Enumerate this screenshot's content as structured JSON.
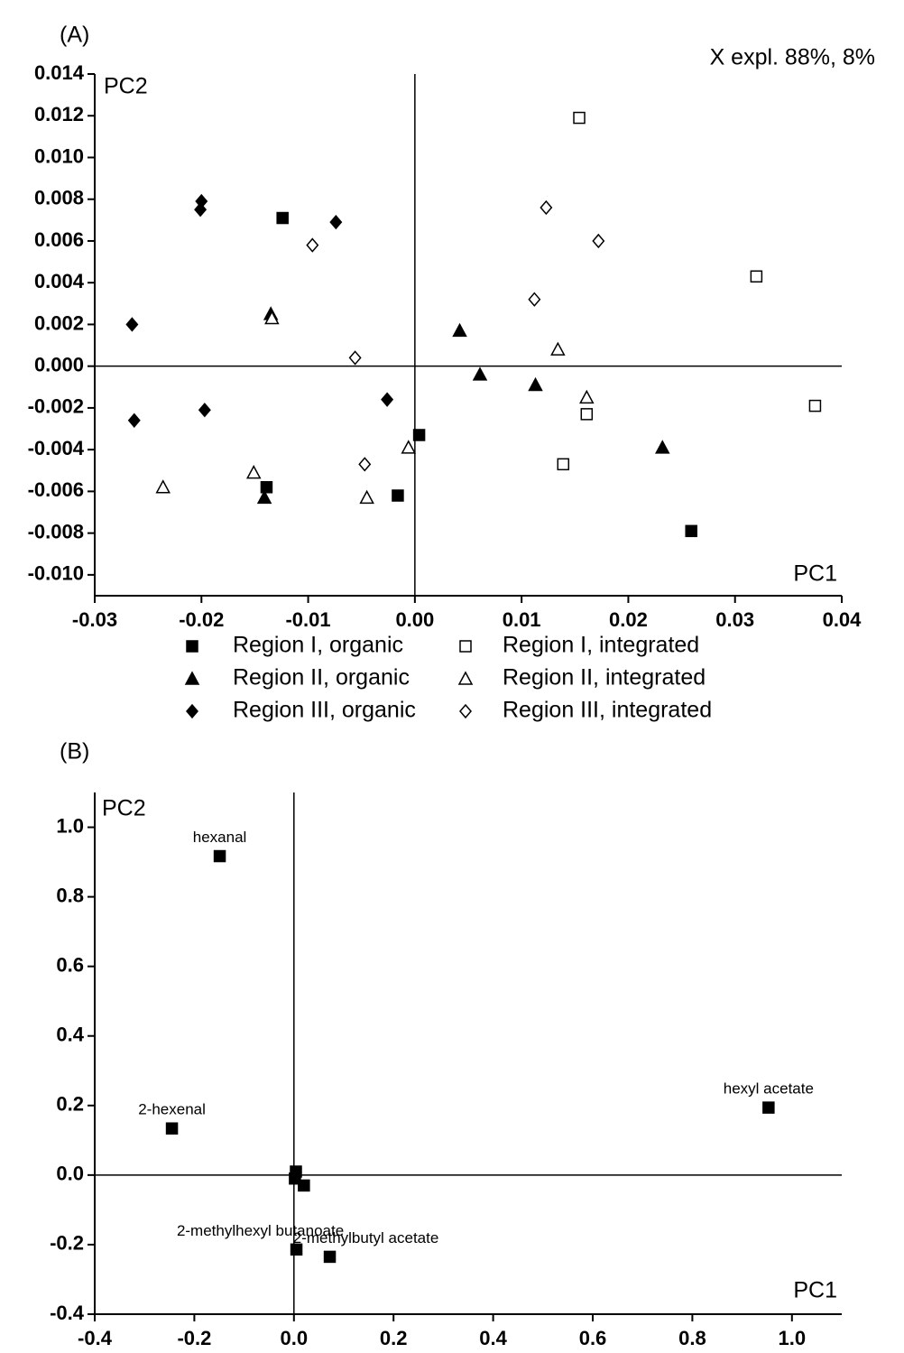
{
  "chart_data": [
    {
      "type": "scatter",
      "panel_label": "(A)",
      "annotation": "X expl. 88%, 8%",
      "ylabel": "PC2",
      "xlabel": "PC1",
      "xlim": [
        -0.03,
        0.04
      ],
      "ylim": [
        -0.011,
        0.014
      ],
      "xticks": [
        -0.03,
        -0.02,
        -0.01,
        {
          "value": 0,
          "label": "0.00"
        },
        0.01,
        0.02,
        0.03,
        0.04
      ],
      "yticks": [
        {
          "value": -0.01,
          "label": "-0.010"
        },
        -0.008,
        -0.006,
        -0.004,
        -0.002,
        {
          "value": 0,
          "label": "0.000"
        },
        0.002,
        0.004,
        0.006,
        0.008,
        {
          "value": 0.01,
          "label": "0.010"
        },
        0.012,
        0.014
      ],
      "legend": "below",
      "grid": false,
      "series": [
        {
          "name": "Region I, organic",
          "color": "#000000",
          "marker": "square",
          "filled": true,
          "x": [
            -0.0124,
            -0.0139,
            -0.0016,
            0.0004,
            0.0259
          ],
          "y": [
            0.0071,
            -0.0058,
            -0.0062,
            -0.0033,
            -0.0079
          ]
        },
        {
          "name": "Region I, integrated",
          "color": "#000000",
          "marker": "square",
          "filled": false,
          "x": [
            0.0154,
            0.032,
            0.0375,
            0.0161,
            0.0139
          ],
          "y": [
            0.0119,
            0.0043,
            -0.0019,
            -0.0023,
            -0.0047
          ]
        },
        {
          "name": "Region II, organic",
          "color": "#000000",
          "marker": "triangle",
          "filled": true,
          "x": [
            -0.0135,
            0.0042,
            0.0061,
            0.0113,
            0.0232,
            -0.0141
          ],
          "y": [
            0.0025,
            0.0017,
            -0.0004,
            -0.0009,
            -0.0039,
            -0.0063
          ]
        },
        {
          "name": "Region II, integrated",
          "color": "#000000",
          "marker": "triangle",
          "filled": false,
          "x": [
            -0.0134,
            0.0134,
            0.0161,
            -0.0006,
            -0.0151,
            -0.0045,
            -0.0236
          ],
          "y": [
            0.0023,
            0.0008,
            -0.0015,
            -0.0039,
            -0.0051,
            -0.0063,
            -0.0058
          ]
        },
        {
          "name": "Region III, organic",
          "color": "#000000",
          "marker": "diamond",
          "filled": true,
          "x": [
            -0.02,
            -0.0201,
            -0.0074,
            -0.0265,
            -0.0026,
            -0.0197,
            -0.0263
          ],
          "y": [
            0.0079,
            0.0075,
            0.0069,
            0.002,
            -0.0016,
            -0.0021,
            -0.0026
          ]
        },
        {
          "name": "Region III, integrated",
          "color": "#000000",
          "marker": "diamond",
          "filled": false,
          "x": [
            0.0123,
            0.0172,
            0.0112,
            -0.0096,
            -0.0056,
            -0.0047
          ],
          "y": [
            0.0076,
            0.006,
            0.0032,
            0.0058,
            0.0004,
            -0.0047
          ]
        }
      ]
    },
    {
      "type": "scatter",
      "panel_label": "(B)",
      "ylabel": "PC2",
      "xlabel": "PC1",
      "xlim": [
        -0.4,
        1.1
      ],
      "ylim": [
        -0.4,
        1.1
      ],
      "xticks": [
        -0.4,
        -0.2,
        {
          "value": 0,
          "label": "0.0"
        },
        0.2,
        0.4,
        0.6,
        0.8,
        {
          "value": 1,
          "label": "1.0"
        }
      ],
      "yticks": [
        -0.4,
        -0.2,
        {
          "value": 0,
          "label": "0.0"
        },
        0.2,
        0.4,
        0.6,
        0.8,
        {
          "value": 1,
          "label": "1.0"
        }
      ],
      "grid": false,
      "series": [
        {
          "color": "#000000",
          "marker": "square",
          "filled": true,
          "x": [
            -0.149,
            -0.245,
            0.953,
            0.072,
            0.005,
            0.004,
            0.002,
            0.02
          ],
          "y": [
            0.917,
            0.134,
            0.194,
            -0.235,
            -0.214,
            0.01,
            -0.01,
            -0.03
          ],
          "labels": [
            "hexanal",
            "2-hexenal",
            "hexyl acetate",
            "2-methylbutyl acetate",
            "2-methylhexyl butanoate",
            null,
            null,
            null
          ]
        }
      ]
    }
  ]
}
